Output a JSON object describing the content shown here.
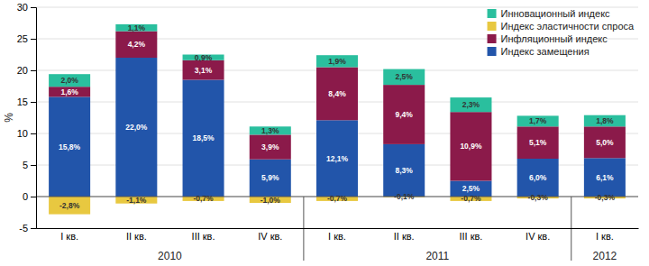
{
  "chart_data": {
    "type": "bar",
    "stacked": true,
    "data_labels": true,
    "grid": true,
    "legend": "upper right",
    "categories": [
      "I кв.",
      "II кв.",
      "III кв.",
      "IV кв.",
      "I кв.",
      "II кв.",
      "III кв.",
      "IV кв.",
      "I кв."
    ],
    "annotations": [
      "2010",
      "2011",
      "2012"
    ],
    "ylabel": "%",
    "ylim": [
      -5,
      30
    ],
    "yticks": [
      -5,
      0,
      5,
      10,
      15,
      20,
      25,
      30
    ],
    "series": [
      {
        "name": "Инновационный индекс",
        "color": "#2abf9e",
        "values": [
          2.0,
          1.1,
          0.9,
          1.3,
          1.9,
          2.5,
          2.3,
          1.7,
          1.8
        ],
        "value_labels": [
          "2,0%",
          "1,1%",
          "0,9%",
          "1,3%",
          "1,9%",
          "2,5%",
          "2,3%",
          "1,7%",
          "1,8%"
        ]
      },
      {
        "name": "Индекс эластичности спроса",
        "color": "#e8c840",
        "values": [
          -2.8,
          -1.1,
          -0.7,
          -1.0,
          -0.7,
          -0.1,
          -0.7,
          -0.3,
          -0.3
        ],
        "value_labels": [
          "-2,8%",
          "-1,1%",
          "-0,7%",
          "-1,0%",
          "-0,7%",
          "-0,1%",
          "-0,7%",
          "-0,3%",
          "-0,3%"
        ]
      },
      {
        "name": "Инфляционный индекс",
        "color": "#8b1a4a",
        "values": [
          1.6,
          4.2,
          3.1,
          3.9,
          8.4,
          9.4,
          10.9,
          5.1,
          5.0
        ],
        "value_labels": [
          "1,6%",
          "4,2%",
          "3,1%",
          "3,9%",
          "8,4%",
          "9,4%",
          "10,9%",
          "5,1%",
          "5,0%"
        ]
      },
      {
        "name": "Индекс замещения",
        "color": "#2255aa",
        "values": [
          15.8,
          22.0,
          18.5,
          5.9,
          12.1,
          8.3,
          2.5,
          6.0,
          6.1
        ],
        "value_labels": [
          "15,8%",
          "22,0%",
          "18,5%",
          "5,9%",
          "12,1%",
          "8,3%",
          "2,5%",
          "6,0%",
          "6,1%"
        ]
      }
    ]
  }
}
